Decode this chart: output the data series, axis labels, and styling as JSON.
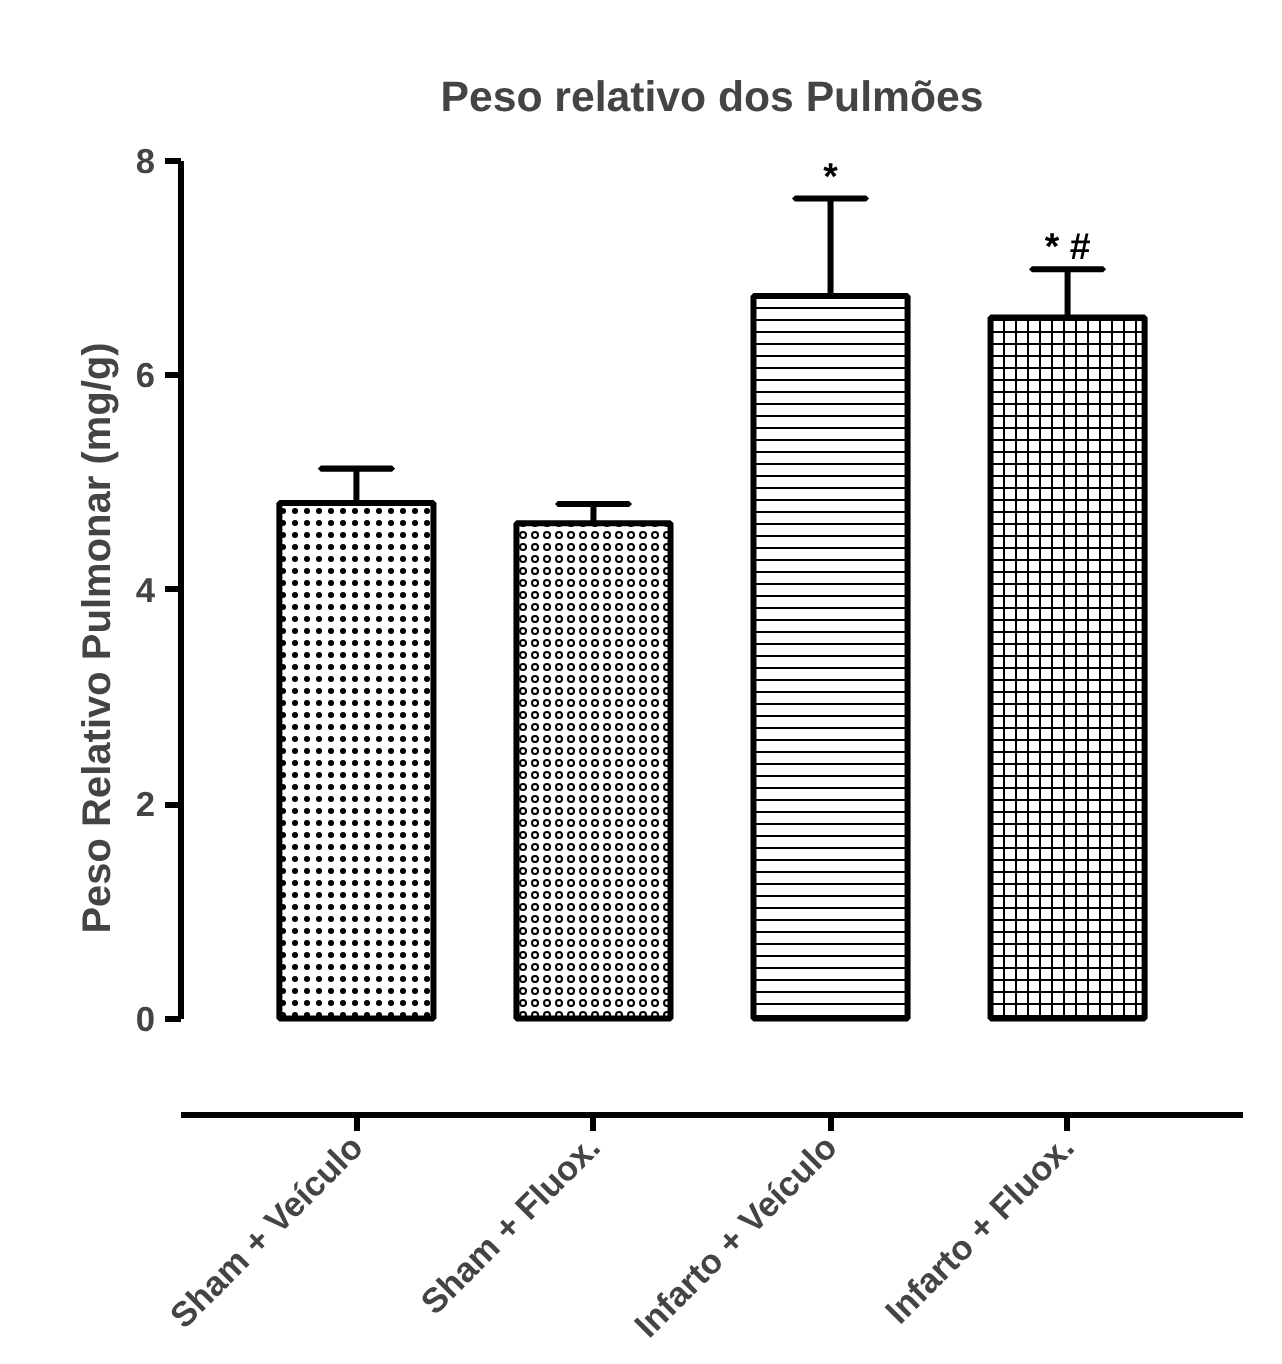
{
  "chart_data": {
    "type": "bar",
    "title": "Peso relativo dos Pulmões",
    "ylabel": "Peso Relativo Pulmonar (mg/g)",
    "categories": [
      "Sham + Veículo",
      "Sham + Fluox.",
      "Infarto + Veículo",
      "Infarto + Fluox."
    ],
    "values": [
      4.81,
      4.62,
      6.74,
      6.54
    ],
    "errors": [
      [
        4.81,
        5.13
      ],
      [
        4.62,
        4.8
      ],
      [
        6.74,
        7.65
      ],
      [
        6.54,
        6.99
      ]
    ],
    "colors": [
      "#ffffff",
      "#ffffff",
      "#ffffff",
      "#ffffff"
    ],
    "ylim": [
      -0.9,
      8
    ],
    "yticks": [
      0,
      2,
      4,
      6,
      8
    ],
    "grid": false,
    "annotations": [
      {
        "text": "*",
        "x": "Infarto + Veículo",
        "y": 7.65
      },
      {
        "text": "* #",
        "x": "Infarto + Fluox.",
        "y": 6.99
      }
    ]
  }
}
